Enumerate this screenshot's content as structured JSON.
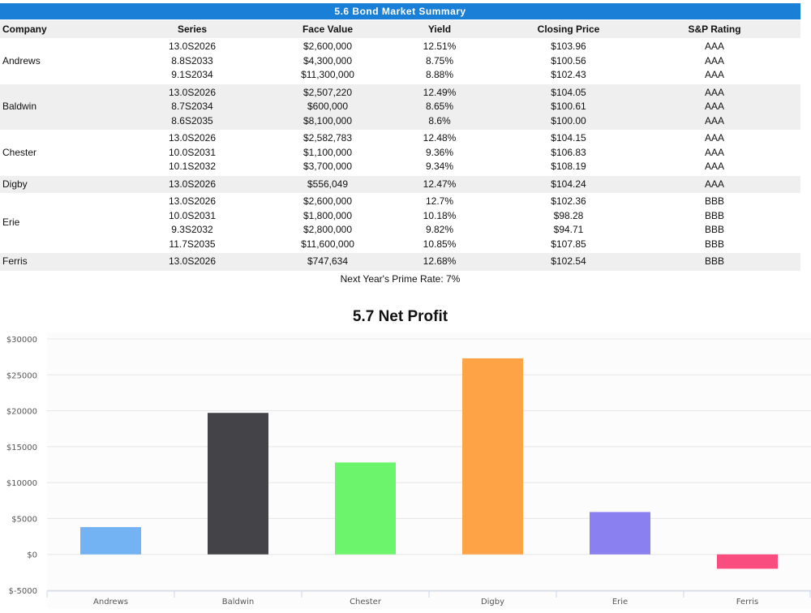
{
  "bond_table": {
    "title": "5.6 Bond Market Summary",
    "headers": [
      "Company",
      "Series",
      "Face Value",
      "Yield",
      "Closing Price",
      "S&P Rating"
    ],
    "groups": [
      {
        "company": "Andrews",
        "rows": [
          {
            "series": "13.0S2026",
            "face": "$2,600,000",
            "yield": "12.51%",
            "price": "$103.96",
            "rating": "AAA"
          },
          {
            "series": "8.8S2033",
            "face": "$4,300,000",
            "yield": "8.75%",
            "price": "$100.56",
            "rating": "AAA"
          },
          {
            "series": "9.1S2034",
            "face": "$11,300,000",
            "yield": "8.88%",
            "price": "$102.43",
            "rating": "AAA"
          }
        ]
      },
      {
        "company": "Baldwin",
        "rows": [
          {
            "series": "13.0S2026",
            "face": "$2,507,220",
            "yield": "12.49%",
            "price": "$104.05",
            "rating": "AAA"
          },
          {
            "series": "8.7S2034",
            "face": "$600,000",
            "yield": "8.65%",
            "price": "$100.61",
            "rating": "AAA"
          },
          {
            "series": "8.6S2035",
            "face": "$8,100,000",
            "yield": "8.6%",
            "price": "$100.00",
            "rating": "AAA"
          }
        ]
      },
      {
        "company": "Chester",
        "rows": [
          {
            "series": "13.0S2026",
            "face": "$2,582,783",
            "yield": "12.48%",
            "price": "$104.15",
            "rating": "AAA"
          },
          {
            "series": "10.0S2031",
            "face": "$1,100,000",
            "yield": "9.36%",
            "price": "$106.83",
            "rating": "AAA"
          },
          {
            "series": "10.1S2032",
            "face": "$3,700,000",
            "yield": "9.34%",
            "price": "$108.19",
            "rating": "AAA"
          }
        ]
      },
      {
        "company": "Digby",
        "rows": [
          {
            "series": "13.0S2026",
            "face": "$556,049",
            "yield": "12.47%",
            "price": "$104.24",
            "rating": "AAA"
          }
        ]
      },
      {
        "company": "Erie",
        "rows": [
          {
            "series": "13.0S2026",
            "face": "$2,600,000",
            "yield": "12.7%",
            "price": "$102.36",
            "rating": "BBB"
          },
          {
            "series": "10.0S2031",
            "face": "$1,800,000",
            "yield": "10.18%",
            "price": "$98.28",
            "rating": "BBB"
          },
          {
            "series": "9.3S2032",
            "face": "$2,800,000",
            "yield": "9.82%",
            "price": "$94.71",
            "rating": "BBB"
          },
          {
            "series": "11.7S2035",
            "face": "$11,600,000",
            "yield": "10.85%",
            "price": "$107.85",
            "rating": "BBB"
          }
        ]
      },
      {
        "company": "Ferris",
        "rows": [
          {
            "series": "13.0S2026",
            "face": "$747,634",
            "yield": "12.68%",
            "price": "$102.54",
            "rating": "BBB"
          }
        ]
      }
    ],
    "prime_rate": "Next Year's Prime Rate: 7%"
  },
  "chart_data": {
    "type": "bar",
    "title": "5.7 Net Profit",
    "categories": [
      "Andrews",
      "Baldwin",
      "Chester",
      "Digby",
      "Erie",
      "Ferris"
    ],
    "values": [
      3800,
      19700,
      12800,
      27300,
      5900,
      -2000
    ],
    "colors": [
      "#74b3f3",
      "#434348",
      "#6cf56c",
      "#fea447",
      "#8b80f0",
      "#fa4d7f"
    ],
    "ylim": [
      -5000,
      30000
    ],
    "yticks": [
      30000,
      25000,
      20000,
      15000,
      10000,
      5000,
      0,
      -5000
    ],
    "ytick_labels": [
      "$30000",
      "$25000",
      "$20000",
      "$15000",
      "$10000",
      "$5000",
      "$0",
      "$-5000"
    ],
    "xlabel": "",
    "ylabel": "",
    "grid": true
  }
}
